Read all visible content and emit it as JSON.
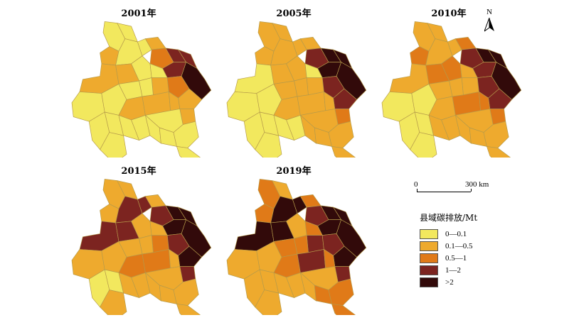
{
  "maps": [
    {
      "title": "2001年",
      "classes": [
        0,
        0,
        1,
        0,
        0,
        1,
        2,
        3,
        3,
        4,
        3,
        1,
        1,
        0,
        0,
        1,
        2,
        1,
        1,
        0,
        0,
        0,
        0,
        1,
        1,
        1,
        0,
        0,
        0,
        0,
        0,
        0,
        0,
        0,
        0,
        0
      ]
    },
    {
      "title": "2005年",
      "classes": [
        1,
        1,
        1,
        1,
        1,
        1,
        3,
        4,
        4,
        4,
        4,
        0,
        1,
        1,
        0,
        1,
        3,
        3,
        2,
        0,
        0,
        1,
        1,
        1,
        1,
        1,
        1,
        0,
        0,
        0,
        0,
        0,
        1,
        1,
        1,
        1
      ]
    },
    {
      "title": "2010年",
      "classes": [
        1,
        1,
        2,
        1,
        1,
        2,
        3,
        4,
        4,
        4,
        3,
        1,
        2,
        2,
        1,
        1,
        3,
        3,
        2,
        0,
        0,
        1,
        1,
        1,
        2,
        2,
        1,
        0,
        0,
        0,
        1,
        1,
        1,
        1,
        1,
        1
      ]
    },
    {
      "title": "2015年",
      "classes": [
        1,
        1,
        1,
        3,
        3,
        1,
        3,
        4,
        4,
        4,
        4,
        3,
        3,
        1,
        1,
        2,
        3,
        4,
        3,
        1,
        1,
        1,
        1,
        2,
        2,
        1,
        1,
        0,
        0,
        1,
        1,
        1,
        1,
        1,
        1,
        1
      ]
    },
    {
      "title": "2019年",
      "classes": [
        2,
        1,
        2,
        4,
        4,
        2,
        3,
        4,
        4,
        4,
        4,
        4,
        4,
        1,
        2,
        3,
        3,
        4,
        3,
        1,
        1,
        2,
        2,
        2,
        3,
        2,
        1,
        1,
        1,
        1,
        1,
        1,
        1,
        2,
        2,
        2
      ]
    }
  ],
  "north": {
    "label": "N"
  },
  "scale": {
    "start": "0",
    "end": "300 km"
  },
  "legend": {
    "title": "县域碳排放/Mt",
    "items": [
      {
        "label": "0—0.1",
        "color": "#f2e85e"
      },
      {
        "label": "0.1—0.5",
        "color": "#eeaa2e"
      },
      {
        "label": "0.5—1",
        "color": "#e07a18"
      },
      {
        "label": "1—2",
        "color": "#7c2420"
      },
      {
        "label": ">2",
        "color": "#320a0a"
      }
    ]
  },
  "colors": {
    "boundary": "#b59a4a"
  }
}
